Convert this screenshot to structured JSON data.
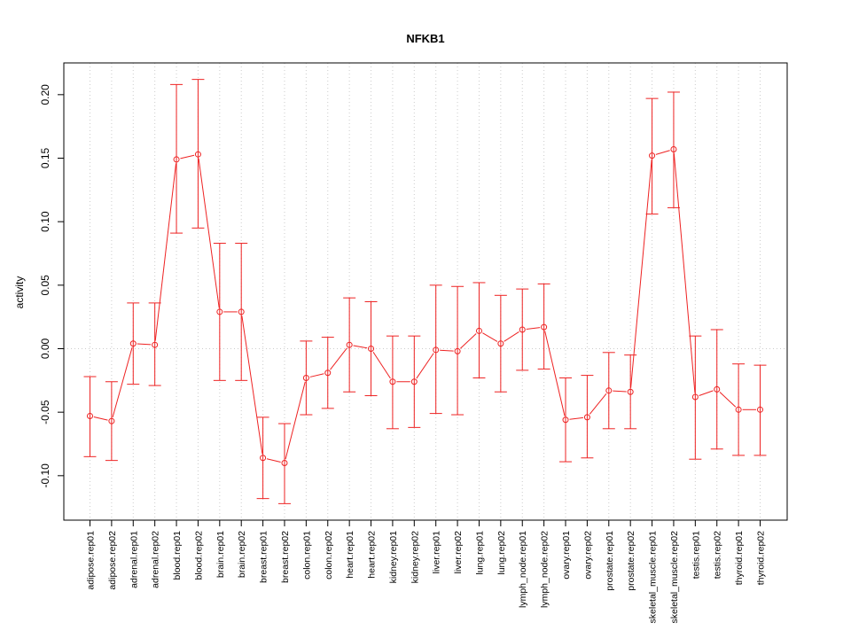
{
  "chart_data": {
    "type": "line",
    "title": "NFKB1",
    "xlabel": "",
    "ylabel": "activity",
    "ylim": [
      -0.135,
      0.225
    ],
    "yticks": [
      -0.1,
      -0.05,
      0.0,
      0.05,
      0.1,
      0.15,
      0.2
    ],
    "ytick_labels": [
      "-0.10",
      "-0.05",
      "0.00",
      "0.05",
      "0.10",
      "0.15",
      "0.20"
    ],
    "grid": true,
    "color": "#ee2222",
    "categories": [
      "adipose.rep01",
      "adipose.rep02",
      "adrenal.rep01",
      "adrenal.rep02",
      "blood.rep01",
      "blood.rep02",
      "brain.rep01",
      "brain.rep02",
      "breast.rep01",
      "breast.rep02",
      "colon.rep01",
      "colon.rep02",
      "heart.rep01",
      "heart.rep02",
      "kidney.rep01",
      "kidney.rep02",
      "liver.rep01",
      "liver.rep02",
      "lung.rep01",
      "lung.rep02",
      "lymph_node.rep01",
      "lymph_node.rep02",
      "ovary.rep01",
      "ovary.rep02",
      "prostate.rep01",
      "prostate.rep02",
      "skeletal_muscle.rep01",
      "skeletal_muscle.rep02",
      "testis.rep01",
      "testis.rep02",
      "thyroid.rep01",
      "thyroid.rep02"
    ],
    "values": [
      -0.053,
      -0.057,
      0.004,
      0.003,
      0.149,
      0.153,
      0.029,
      0.029,
      -0.086,
      -0.09,
      -0.023,
      -0.019,
      0.003,
      0.0,
      -0.026,
      -0.026,
      -0.001,
      -0.002,
      0.014,
      0.004,
      0.015,
      0.017,
      -0.056,
      -0.054,
      -0.033,
      -0.034,
      0.152,
      0.157,
      -0.038,
      -0.032,
      -0.048,
      -0.048
    ],
    "upper": [
      -0.022,
      -0.026,
      0.036,
      0.036,
      0.208,
      0.212,
      0.083,
      0.083,
      -0.054,
      -0.059,
      0.006,
      0.009,
      0.04,
      0.037,
      0.01,
      0.01,
      0.05,
      0.049,
      0.052,
      0.042,
      0.047,
      0.051,
      -0.023,
      -0.021,
      -0.003,
      -0.005,
      0.197,
      0.202,
      0.01,
      0.015,
      -0.012,
      -0.013
    ],
    "lower": [
      -0.085,
      -0.088,
      -0.028,
      -0.029,
      0.091,
      0.095,
      -0.025,
      -0.025,
      -0.118,
      -0.122,
      -0.052,
      -0.047,
      -0.034,
      -0.037,
      -0.063,
      -0.062,
      -0.051,
      -0.052,
      -0.023,
      -0.034,
      -0.017,
      -0.016,
      -0.089,
      -0.086,
      -0.063,
      -0.063,
      0.106,
      0.111,
      -0.087,
      -0.079,
      -0.084,
      -0.084
    ]
  }
}
